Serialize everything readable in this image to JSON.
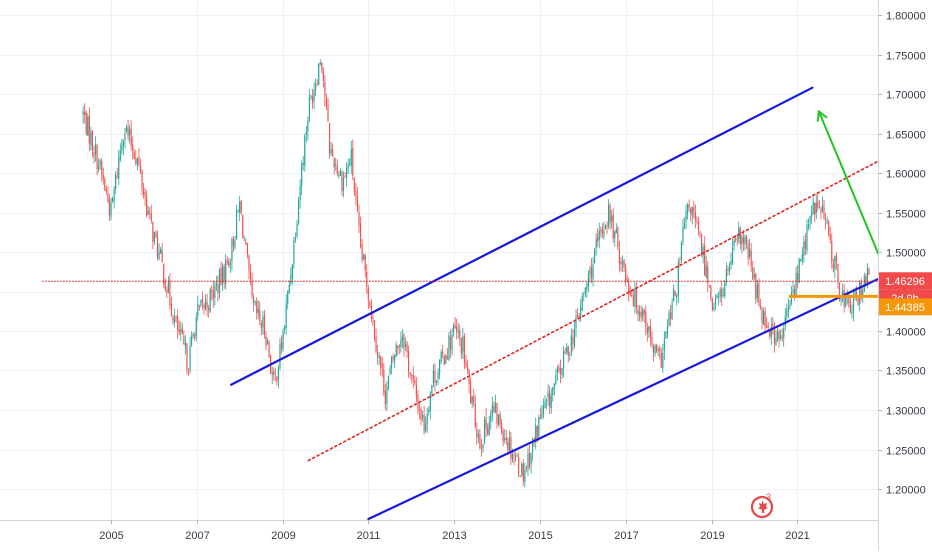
{
  "chart_data": {
    "type": "candlestick",
    "title": "",
    "xlabel": "",
    "ylabel": "",
    "x_ticks": [
      "2005",
      "2007",
      "2009",
      "2011",
      "2013",
      "2015",
      "2017",
      "2019",
      "2021"
    ],
    "y_ticks": [
      "1.20000",
      "1.25000",
      "1.30000",
      "1.35000",
      "1.40000",
      "1.45000",
      "1.50000",
      "1.55000",
      "1.60000",
      "1.65000",
      "1.70000",
      "1.75000",
      "1.80000"
    ],
    "xlim": [
      2003.4,
      2022.7
    ],
    "ylim": [
      1.158,
      1.822
    ],
    "grid": true,
    "series": [
      {
        "role": "price",
        "points": [
          [
            2004.35,
            1.675
          ],
          [
            2004.7,
            1.615
          ],
          [
            2005.0,
            1.55
          ],
          [
            2005.3,
            1.66
          ],
          [
            2005.6,
            1.62
          ],
          [
            2005.9,
            1.54
          ],
          [
            2006.2,
            1.48
          ],
          [
            2006.5,
            1.41
          ],
          [
            2006.8,
            1.36
          ],
          [
            2007.0,
            1.42
          ],
          [
            2007.3,
            1.44
          ],
          [
            2007.6,
            1.47
          ],
          [
            2007.8,
            1.5
          ],
          [
            2008.0,
            1.56
          ],
          [
            2008.3,
            1.43
          ],
          [
            2008.6,
            1.4
          ],
          [
            2008.8,
            1.33
          ],
          [
            2009.0,
            1.39
          ],
          [
            2009.2,
            1.48
          ],
          [
            2009.45,
            1.61
          ],
          [
            2009.6,
            1.68
          ],
          [
            2009.9,
            1.75
          ],
          [
            2010.1,
            1.63
          ],
          [
            2010.4,
            1.59
          ],
          [
            2010.6,
            1.62
          ],
          [
            2010.8,
            1.51
          ],
          [
            2011.0,
            1.45
          ],
          [
            2011.2,
            1.38
          ],
          [
            2011.4,
            1.32
          ],
          [
            2011.6,
            1.37
          ],
          [
            2011.8,
            1.4
          ],
          [
            2012.0,
            1.34
          ],
          [
            2012.3,
            1.28
          ],
          [
            2012.5,
            1.34
          ],
          [
            2012.7,
            1.36
          ],
          [
            2013.0,
            1.4
          ],
          [
            2013.2,
            1.38
          ],
          [
            2013.4,
            1.31
          ],
          [
            2013.6,
            1.26
          ],
          [
            2013.9,
            1.3
          ],
          [
            2014.1,
            1.28
          ],
          [
            2014.3,
            1.255
          ],
          [
            2014.6,
            1.22
          ],
          [
            2014.8,
            1.25
          ],
          [
            2015.0,
            1.29
          ],
          [
            2015.2,
            1.31
          ],
          [
            2015.4,
            1.34
          ],
          [
            2015.6,
            1.37
          ],
          [
            2015.8,
            1.4
          ],
          [
            2016.0,
            1.44
          ],
          [
            2016.2,
            1.48
          ],
          [
            2016.4,
            1.52
          ],
          [
            2016.6,
            1.55
          ],
          [
            2016.8,
            1.51
          ],
          [
            2017.0,
            1.47
          ],
          [
            2017.2,
            1.44
          ],
          [
            2017.45,
            1.42
          ],
          [
            2017.6,
            1.38
          ],
          [
            2017.8,
            1.36
          ],
          [
            2018.0,
            1.41
          ],
          [
            2018.2,
            1.46
          ],
          [
            2018.35,
            1.53
          ],
          [
            2018.5,
            1.56
          ],
          [
            2018.7,
            1.52
          ],
          [
            2018.9,
            1.47
          ],
          [
            2019.05,
            1.43
          ],
          [
            2019.25,
            1.45
          ],
          [
            2019.45,
            1.49
          ],
          [
            2019.65,
            1.52
          ],
          [
            2019.85,
            1.5
          ],
          [
            2020.0,
            1.46
          ],
          [
            2020.2,
            1.42
          ],
          [
            2020.4,
            1.4
          ],
          [
            2020.6,
            1.385
          ],
          [
            2020.8,
            1.43
          ],
          [
            2021.0,
            1.47
          ],
          [
            2021.2,
            1.52
          ],
          [
            2021.4,
            1.56
          ],
          [
            2021.6,
            1.55
          ],
          [
            2021.8,
            1.5
          ],
          [
            2022.0,
            1.45
          ],
          [
            2022.2,
            1.43
          ],
          [
            2022.4,
            1.44
          ],
          [
            2022.55,
            1.47
          ],
          [
            2022.7,
            1.46
          ]
        ]
      }
    ],
    "drawings": [
      {
        "name": "upper channel line",
        "color": "#1818d8",
        "points": [
          [
            2007.8,
            1.332
          ],
          [
            2021.35,
            1.708
          ]
        ]
      },
      {
        "name": "lower channel line",
        "color": "#1818d8",
        "points": [
          [
            2011.0,
            1.162
          ],
          [
            2025.0,
            1.52
          ]
        ]
      },
      {
        "name": "midline",
        "color": "#e02424",
        "style": "dotted",
        "points": [
          [
            2009.6,
            1.236
          ],
          [
            2023.55,
            1.634
          ]
        ]
      },
      {
        "name": "green arrow",
        "color": "#22c41e",
        "points": [
          [
            2023.3,
            1.444
          ],
          [
            2021.5,
            1.678
          ]
        ]
      },
      {
        "name": "support line",
        "color": "#f5960a",
        "points": [
          [
            2020.8,
            1.4438
          ],
          [
            2025.9,
            1.4438
          ]
        ]
      },
      {
        "name": "current price line",
        "color": "#e02424",
        "style": "dotted",
        "points": [
          [
            2003.4,
            1.46296
          ],
          [
            2025.9,
            1.46296
          ]
        ]
      }
    ],
    "price_labels": [
      {
        "name": "last-price",
        "value": 1.46296,
        "text": "1.46296",
        "color": "#f04a4a"
      },
      {
        "name": "countdown",
        "text": "2d 9h",
        "color": "#f04a4a"
      },
      {
        "name": "support-price",
        "value": 1.44385,
        "text": "1.44385",
        "color": "#f5960a"
      }
    ],
    "colors": {
      "up": "#26a69a",
      "down": "#ef5350",
      "grid": "#eef0f4",
      "axis_text": "#363a45",
      "background": "#ffffff"
    },
    "watermark": "3"
  }
}
